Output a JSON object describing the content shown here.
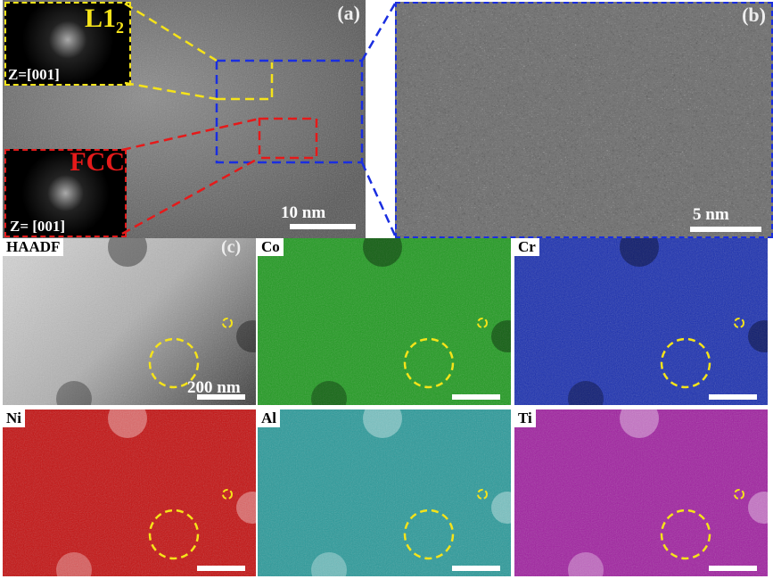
{
  "panel_a": {
    "tag": "(a)",
    "scale": "10 nm",
    "inset_top": {
      "phase": "L1",
      "sub": "2",
      "zone": "Z=[001]"
    },
    "inset_bottom": {
      "phase": "FCC",
      "zone": "Z= [001]"
    }
  },
  "panel_b": {
    "tag": "(b)",
    "scale": "5 nm"
  },
  "panel_c": {
    "tag": "(c)",
    "scale": "200 nm",
    "maps": [
      {
        "label": "HAADF",
        "color": "#9a9a9a"
      },
      {
        "label": "Co",
        "color": "#1f9a1f"
      },
      {
        "label": "Cr",
        "color": "#1a2fb0"
      },
      {
        "label": "Ni",
        "color": "#c41010"
      },
      {
        "label": "Al",
        "color": "#2a9a9a"
      },
      {
        "label": "Ti",
        "color": "#a020a0"
      }
    ]
  },
  "colors": {
    "l12": "#f5e31a",
    "fcc": "#e51a1a",
    "zoom_box": "#1a2ee0"
  }
}
